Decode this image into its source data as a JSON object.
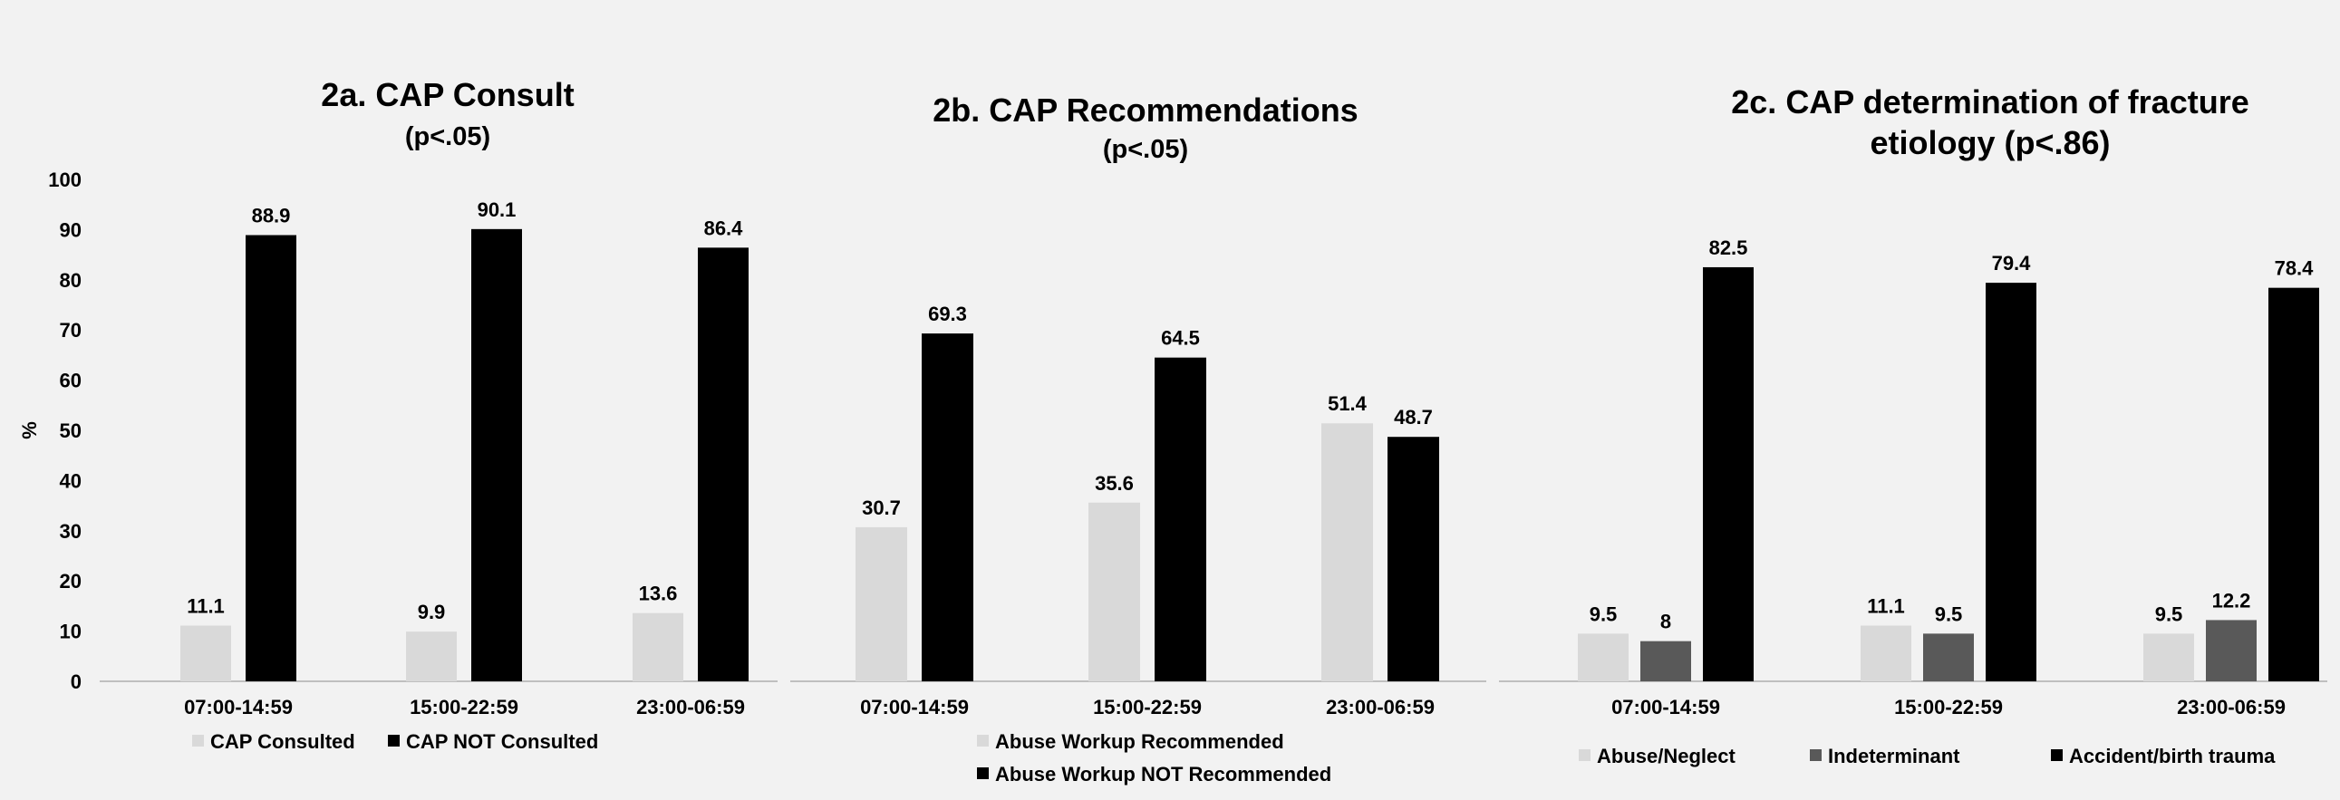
{
  "y_axis": {
    "label": "%",
    "ylim": [
      0,
      100
    ],
    "ticks": [
      "0",
      "10",
      "20",
      "30",
      "40",
      "50",
      "60",
      "70",
      "80",
      "90",
      "100"
    ]
  },
  "colors": {
    "background": "#f2f2f2",
    "light": "#d9d9d9",
    "dark": "#595959",
    "black": "#000000",
    "axis": "#bfbfbf"
  },
  "chart_data": [
    {
      "type": "bar",
      "title": "2a. CAP Consult",
      "subtitle": "(p<.05)",
      "ylabel": "%",
      "ylim": [
        0,
        100
      ],
      "categories": [
        "07:00-14:59",
        "15:00-22:59",
        "23:00-06:59"
      ],
      "series": [
        {
          "name": "CAP Consulted",
          "color": "#d9d9d9",
          "values": [
            11.1,
            9.9,
            13.6
          ],
          "labels": [
            "11.1",
            "9.9",
            "13.6"
          ]
        },
        {
          "name": "CAP NOT Consulted",
          "color": "#000000",
          "values": [
            88.9,
            90.1,
            86.4
          ],
          "labels": [
            "88.9",
            "90.1",
            "86.4"
          ]
        }
      ],
      "legend_position": "bottom"
    },
    {
      "type": "bar",
      "title": "2b. CAP Recommendations",
      "subtitle": "(p<.05)",
      "ylim": [
        0,
        100
      ],
      "categories": [
        "07:00-14:59",
        "15:00-22:59",
        "23:00-06:59"
      ],
      "series": [
        {
          "name": "Abuse Workup Recommended",
          "color": "#d9d9d9",
          "values": [
            30.7,
            35.6,
            51.4
          ],
          "labels": [
            "30.7",
            "35.6",
            "51.4"
          ]
        },
        {
          "name": "Abuse Workup NOT Recommended",
          "color": "#000000",
          "values": [
            69.3,
            64.5,
            48.7
          ],
          "labels": [
            "69.3",
            "64.5",
            "48.7"
          ]
        }
      ],
      "legend_position": "bottom"
    },
    {
      "type": "bar",
      "title": "2c. CAP determination of fracture",
      "subtitle": "etiology (p<.86)",
      "ylim": [
        0,
        100
      ],
      "categories": [
        "07:00-14:59",
        "15:00-22:59",
        "23:00-06:59"
      ],
      "series": [
        {
          "name": "Abuse/Neglect",
          "color": "#d9d9d9",
          "values": [
            9.5,
            11.1,
            9.5
          ],
          "labels": [
            "9.5",
            "11.1",
            "9.5"
          ]
        },
        {
          "name": "Indeterminant",
          "color": "#595959",
          "values": [
            8,
            9.5,
            12.2
          ],
          "labels": [
            "8",
            "9.5",
            "12.2"
          ]
        },
        {
          "name": "Accident/birth trauma",
          "color": "#000000",
          "values": [
            82.5,
            79.4,
            78.4
          ],
          "labels": [
            "82.5",
            "79.4",
            "78.4"
          ]
        }
      ],
      "legend_position": "bottom"
    }
  ]
}
